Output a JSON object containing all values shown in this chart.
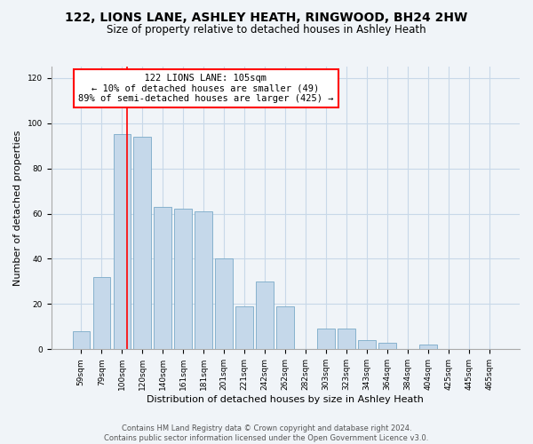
{
  "title": "122, LIONS LANE, ASHLEY HEATH, RINGWOOD, BH24 2HW",
  "subtitle": "Size of property relative to detached houses in Ashley Heath",
  "xlabel": "Distribution of detached houses by size in Ashley Heath",
  "ylabel": "Number of detached properties",
  "bar_labels": [
    "59sqm",
    "79sqm",
    "100sqm",
    "120sqm",
    "140sqm",
    "161sqm",
    "181sqm",
    "201sqm",
    "221sqm",
    "242sqm",
    "262sqm",
    "282sqm",
    "303sqm",
    "323sqm",
    "343sqm",
    "364sqm",
    "384sqm",
    "404sqm",
    "425sqm",
    "445sqm",
    "465sqm"
  ],
  "bar_values": [
    8,
    32,
    95,
    94,
    63,
    62,
    61,
    40,
    19,
    30,
    19,
    0,
    9,
    9,
    4,
    3,
    0,
    2,
    0,
    0,
    0
  ],
  "bar_color": "#c5d8ea",
  "bar_edge_color": "#7aaac8",
  "annotation_text_line1": "122 LIONS LANE: 105sqm",
  "annotation_text_line2": "← 10% of detached houses are smaller (49)",
  "annotation_text_line3": "89% of semi-detached houses are larger (425) →",
  "annotation_box_color": "white",
  "annotation_box_edge": "red",
  "vline_color": "red",
  "ylim": [
    0,
    125
  ],
  "yticks": [
    0,
    20,
    40,
    60,
    80,
    100,
    120
  ],
  "footer_line1": "Contains HM Land Registry data © Crown copyright and database right 2024.",
  "footer_line2": "Contains public sector information licensed under the Open Government Licence v3.0.",
  "bg_color": "#f0f4f8",
  "plot_bg_color": "#f0f4f8",
  "grid_color": "#c8d8e8",
  "title_fontsize": 10,
  "subtitle_fontsize": 8.5,
  "ylabel_fontsize": 8,
  "xlabel_fontsize": 8,
  "tick_fontsize": 6.5,
  "annotation_fontsize": 7.5,
  "footer_fontsize": 6
}
